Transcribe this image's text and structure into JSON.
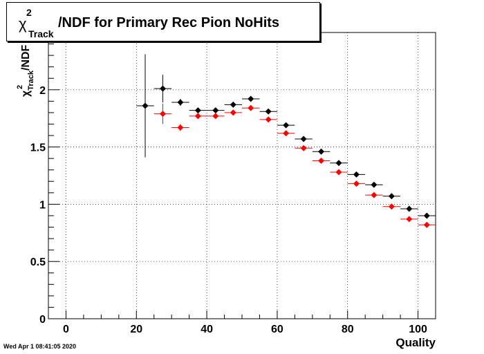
{
  "chart_data": {
    "type": "scatter",
    "title": {
      "symbol": "χ",
      "superscript": "2",
      "subscript": "Track",
      "rest": "/NDF for Primary Rec Pion NoHits"
    },
    "xlabel": "Quality",
    "ylabel": {
      "symbol": "χ",
      "superscript": "2",
      "subscript": "Track",
      "rest": "/NDF"
    },
    "xlim": [
      -5,
      105
    ],
    "ylim": [
      0,
      2.5
    ],
    "xticks": [
      0,
      20,
      40,
      60,
      80,
      100
    ],
    "yticks": [
      0,
      0.5,
      1,
      1.5,
      2
    ],
    "ytick_labels": [
      "0",
      "0.5",
      "1",
      "1.5",
      "2"
    ],
    "grid": true,
    "bin_half_width": 2.5,
    "series": [
      {
        "color": "#000000",
        "x": [
          22.5,
          27.5,
          32.5,
          37.5,
          42.5,
          47.5,
          52.5,
          57.5,
          62.5,
          67.5,
          72.5,
          77.5,
          82.5,
          87.5,
          92.5,
          97.5,
          102.5
        ],
        "y": [
          1.86,
          2.01,
          1.89,
          1.82,
          1.82,
          1.87,
          1.92,
          1.81,
          1.69,
          1.57,
          1.46,
          1.36,
          1.26,
          1.17,
          1.07,
          0.96,
          0.9
        ],
        "yerr": [
          0.45,
          0.12,
          0.03,
          0.02,
          0.02,
          0.02,
          0.02,
          0.02,
          0.02,
          0.02,
          0.02,
          0.02,
          0.02,
          0.02,
          0.02,
          0.02,
          0.02
        ]
      },
      {
        "color": "#ff0000",
        "x": [
          27.5,
          32.5,
          37.5,
          42.5,
          47.5,
          52.5,
          57.5,
          62.5,
          67.5,
          72.5,
          77.5,
          82.5,
          87.5,
          92.5,
          97.5,
          102.5
        ],
        "y": [
          1.79,
          1.67,
          1.77,
          1.77,
          1.8,
          1.84,
          1.74,
          1.62,
          1.49,
          1.38,
          1.28,
          1.18,
          1.08,
          0.98,
          0.87,
          0.82
        ],
        "yerr": [
          0.09,
          0.03,
          0.02,
          0.02,
          0.02,
          0.02,
          0.02,
          0.02,
          0.02,
          0.02,
          0.02,
          0.02,
          0.02,
          0.02,
          0.02,
          0.02
        ]
      }
    ]
  },
  "footer": "Wed Apr  1 08:41:05 2020"
}
